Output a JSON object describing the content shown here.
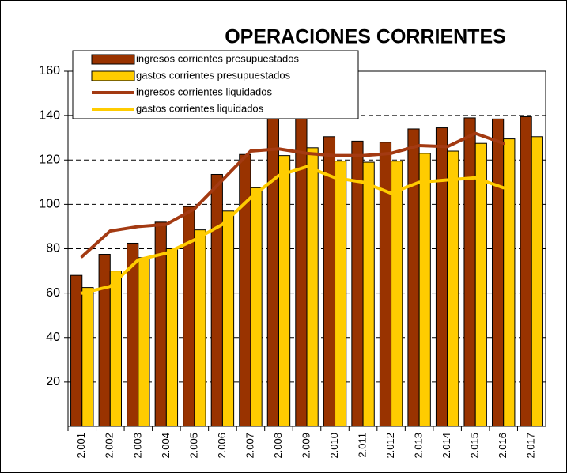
{
  "chart_data": {
    "type": "bar_line",
    "title": "OPERACIONES CORRIENTES",
    "categories": [
      "2.001",
      "2.002",
      "2.003",
      "2.004",
      "2.005",
      "2.006",
      "2.007",
      "2.008",
      "2.009",
      "2.010",
      "2.011",
      "2.012",
      "2.013",
      "2.014",
      "2.015",
      "2.016",
      "2.017"
    ],
    "series": [
      {
        "name": "ingresos corrientes presupuestados",
        "kind": "bar",
        "color": "#993300",
        "values": [
          68,
          77.5,
          82.5,
          92,
          99,
          113.5,
          122.5,
          140,
          140,
          130.5,
          128.5,
          128,
          134,
          134.5,
          139,
          138.5,
          139.5
        ]
      },
      {
        "name": "gastos corrientes presupuestados",
        "kind": "bar",
        "color": "#ffcc00",
        "values": [
          62.5,
          70,
          76,
          80,
          88.5,
          97,
          107.5,
          122,
          125.5,
          119.5,
          119,
          119.5,
          123,
          124,
          127.5,
          129.5,
          130.5
        ]
      },
      {
        "name": "ingresos corrientes liquidados",
        "kind": "line",
        "color": "#a33a12",
        "values": [
          76.5,
          88,
          90,
          91,
          98,
          111,
          124,
          125,
          123,
          122,
          122,
          123,
          126.5,
          126,
          132,
          127.5,
          null
        ]
      },
      {
        "name": "gastos corrientes liquidados",
        "kind": "line",
        "color": "#ffcc00",
        "values": [
          60,
          63,
          75,
          78,
          84,
          91,
          103,
          113,
          117,
          112,
          110,
          105,
          110,
          111,
          112,
          107.5,
          null
        ]
      }
    ],
    "ylim": [
      0,
      160
    ],
    "yticks": [
      20,
      40,
      60,
      80,
      100,
      120,
      140,
      160
    ],
    "grid": true
  }
}
